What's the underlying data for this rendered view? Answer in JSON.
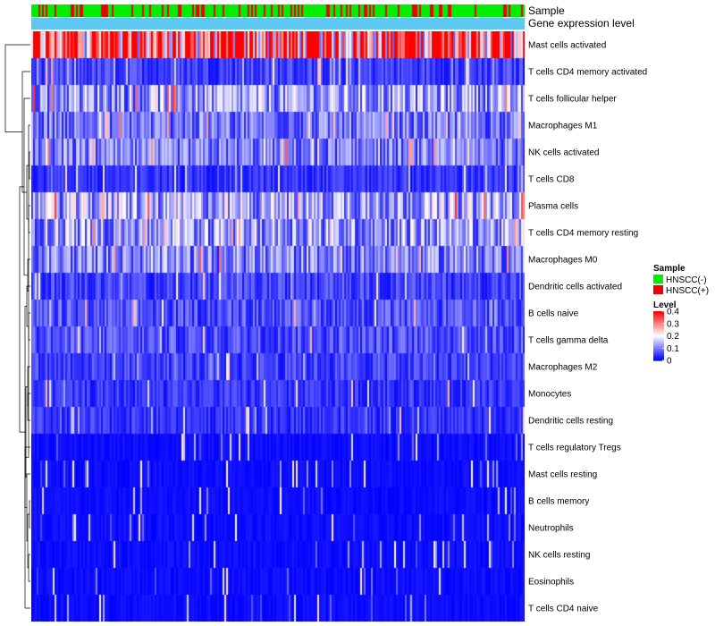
{
  "chart_data": {
    "type": "heatmap",
    "annotation_rows": [
      {
        "label": "Sample",
        "kind": "categorical"
      },
      {
        "label": "Gene expression level",
        "kind": "constant",
        "color": "#5ec8f0"
      }
    ],
    "rows": [
      "Mast cells activated",
      "T cells CD4 memory activated",
      "T cells follicular helper",
      "Macrophages M1",
      "NK cells activated",
      "T cells CD8",
      "Plasma cells",
      "T cells CD4 memory resting",
      "Macrophages M0",
      "Dendritic cells activated",
      "B cells naive",
      "T cells gamma delta",
      "Macrophages M2",
      "Monocytes",
      "Dendritic cells resting",
      "T cells regulatory  Tregs",
      "Mast cells resting",
      "B cells memory",
      "Neutrophils",
      "NK cells resting",
      "Eosinophils",
      "T cells CD4 naive"
    ],
    "row_mean_level": [
      0.32,
      0.05,
      0.12,
      0.09,
      0.09,
      0.04,
      0.13,
      0.12,
      0.1,
      0.05,
      0.06,
      0.06,
      0.05,
      0.04,
      0.04,
      0.02,
      0.01,
      0.015,
      0.015,
      0.02,
      0.01,
      0.02
    ],
    "n_samples": 276,
    "legend": {
      "sample": {
        "title": "Sample",
        "items": [
          {
            "label": "HNSCC(-)",
            "color": "#00ee00"
          },
          {
            "label": "HNSCC(+)",
            "color": "#ee0000"
          }
        ]
      },
      "level": {
        "title": "Level",
        "ticks": [
          "0.4",
          "0.3",
          "0.2",
          "0.1",
          "0"
        ],
        "tick_values": [
          0.4,
          0.3,
          0.2,
          0.1,
          0
        ],
        "range": [
          0,
          0.4
        ],
        "colors": {
          "low": "#0000ff",
          "mid": "#ffffff",
          "high": "#ff0000"
        }
      }
    }
  }
}
